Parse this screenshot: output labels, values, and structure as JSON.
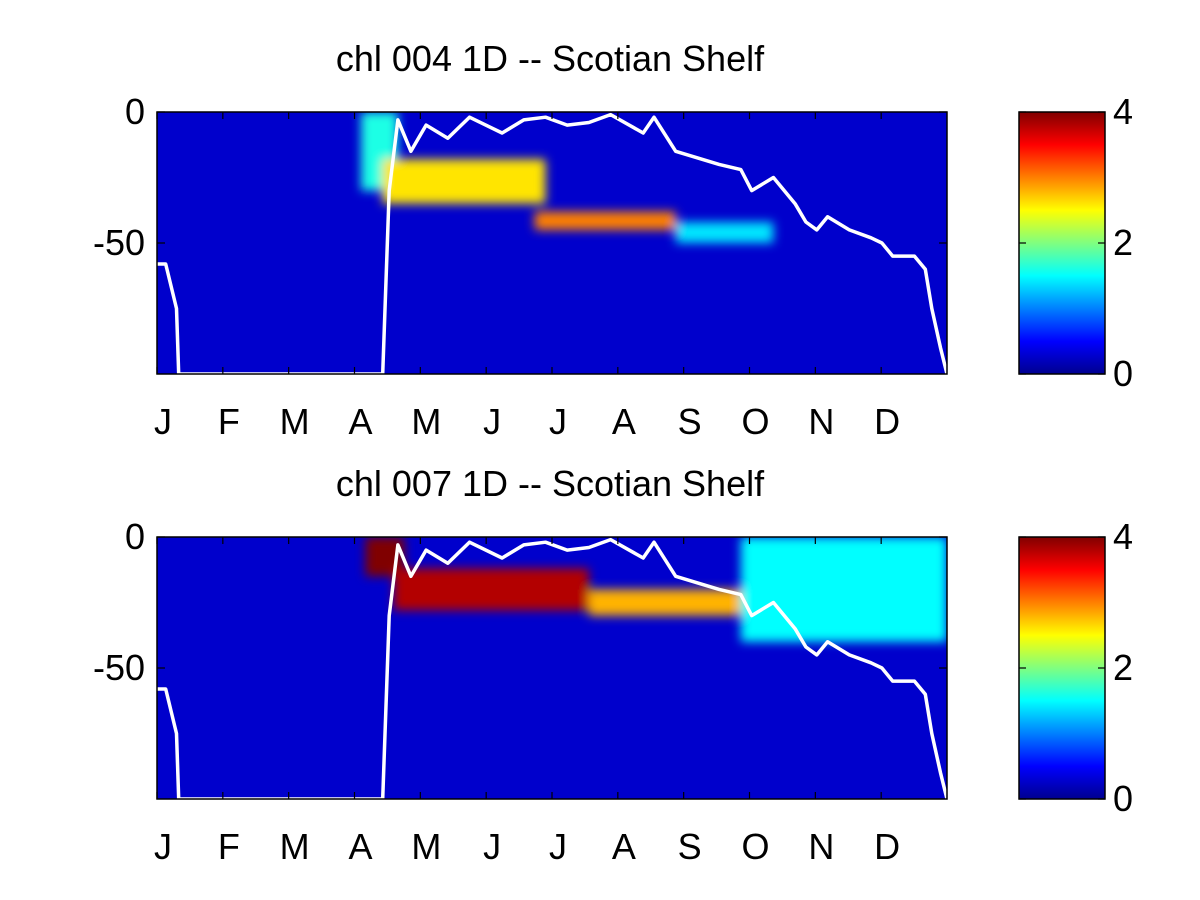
{
  "chart_data": [
    {
      "type": "heatmap",
      "title": "chl  004 1D   -- Scotian Shelf",
      "xlabel": "",
      "ylabel": "",
      "x_tick_labels": [
        "J",
        "F",
        "M",
        "A",
        "M",
        "J",
        "J",
        "A",
        "S",
        "O",
        "N",
        "D"
      ],
      "x_range_days": [
        1,
        365
      ],
      "y_range": [
        -100,
        0
      ],
      "y_tick_values": [
        0,
        -50
      ],
      "y_tick_labels": [
        "0",
        "-50"
      ],
      "colormap": "jet",
      "color_range": [
        0,
        4
      ],
      "colorbar_ticks": [
        0,
        2,
        4
      ],
      "colorbar_tick_labels": [
        "0",
        "2",
        "4"
      ],
      "background_value": 0.3,
      "features": [
        {
          "day_start": 95,
          "day_end": 112,
          "depth_top": 0,
          "depth_bottom": -30,
          "value": 1.6
        },
        {
          "day_start": 105,
          "day_end": 180,
          "depth_top": -18,
          "depth_bottom": -35,
          "value": 2.6
        },
        {
          "day_start": 175,
          "day_end": 240,
          "depth_top": -38,
          "depth_bottom": -45,
          "value": 3.0
        },
        {
          "day_start": 240,
          "day_end": 285,
          "depth_top": -42,
          "depth_bottom": -50,
          "value": 1.4
        }
      ],
      "mixed_layer_line": {
        "x": [
          1,
          5,
          10,
          11,
          105,
          108,
          112,
          118,
          125,
          135,
          145,
          160,
          170,
          180,
          190,
          200,
          210,
          225,
          230,
          240,
          260,
          270,
          275,
          285,
          295,
          300,
          305,
          310,
          320,
          330,
          335,
          340,
          350,
          355,
          358,
          362,
          365
        ],
        "y": [
          -58,
          -58,
          -75,
          -100,
          -100,
          -30,
          -3,
          -15,
          -5,
          -10,
          -2,
          -8,
          -3,
          -2,
          -5,
          -4,
          -1,
          -8,
          -2,
          -15,
          -20,
          -22,
          -30,
          -25,
          -35,
          -42,
          -45,
          -40,
          -45,
          -48,
          -50,
          -55,
          -55,
          -60,
          -75,
          -90,
          -100
        ]
      }
    },
    {
      "type": "heatmap",
      "title": "chl  007 1D   -- Scotian Shelf",
      "xlabel": "",
      "ylabel": "",
      "x_tick_labels": [
        "J",
        "F",
        "M",
        "A",
        "M",
        "J",
        "J",
        "A",
        "S",
        "O",
        "N",
        "D"
      ],
      "x_range_days": [
        1,
        365
      ],
      "y_range": [
        -100,
        0
      ],
      "y_tick_values": [
        0,
        -50
      ],
      "y_tick_labels": [
        "0",
        "-50"
      ],
      "colormap": "jet",
      "color_range": [
        0,
        4
      ],
      "colorbar_ticks": [
        0,
        2,
        4
      ],
      "colorbar_tick_labels": [
        "0",
        "2",
        "4"
      ],
      "background_value": 0.3,
      "features": [
        {
          "day_start": 97,
          "day_end": 115,
          "depth_top": 0,
          "depth_bottom": -15,
          "value": 4.0
        },
        {
          "day_start": 110,
          "day_end": 200,
          "depth_top": -12,
          "depth_bottom": -28,
          "value": 3.8
        },
        {
          "day_start": 200,
          "day_end": 270,
          "depth_top": -20,
          "depth_bottom": -30,
          "value": 2.8
        },
        {
          "day_start": 270,
          "day_end": 365,
          "depth_top": 0,
          "depth_bottom": -40,
          "value": 1.5
        }
      ],
      "mixed_layer_line": {
        "x": [
          1,
          5,
          10,
          11,
          105,
          108,
          112,
          118,
          125,
          135,
          145,
          160,
          170,
          180,
          190,
          200,
          210,
          225,
          230,
          240,
          260,
          270,
          275,
          285,
          295,
          300,
          305,
          310,
          320,
          330,
          335,
          340,
          350,
          355,
          358,
          362,
          365
        ],
        "y": [
          -58,
          -58,
          -75,
          -100,
          -100,
          -30,
          -3,
          -15,
          -5,
          -10,
          -2,
          -8,
          -3,
          -2,
          -5,
          -4,
          -1,
          -8,
          -2,
          -15,
          -20,
          -22,
          -30,
          -25,
          -35,
          -42,
          -45,
          -40,
          -45,
          -48,
          -50,
          -55,
          -55,
          -60,
          -75,
          -90,
          -100
        ]
      }
    }
  ]
}
